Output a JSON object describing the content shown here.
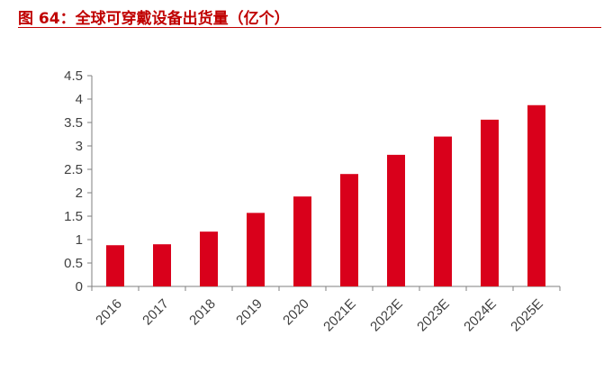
{
  "figure": {
    "title": "图 64：全球可穿戴设备出货量（亿个）"
  },
  "chart_data": {
    "type": "bar",
    "title": "",
    "xlabel": "",
    "ylabel": "",
    "categories": [
      "2016",
      "2017",
      "2018",
      "2019",
      "2020",
      "2021E",
      "2022E",
      "2023E",
      "2024E",
      "2025E"
    ],
    "values": [
      0.88,
      0.9,
      1.17,
      1.57,
      1.92,
      2.4,
      2.81,
      3.2,
      3.56,
      3.87
    ],
    "ylim": [
      0,
      4.5
    ],
    "yticks": [
      "0",
      "0.5",
      "1",
      "1.5",
      "2",
      "2.5",
      "3",
      "3.5",
      "4",
      "4.5"
    ],
    "grid": false,
    "legend": "none",
    "bar_color": "#d9001b"
  }
}
